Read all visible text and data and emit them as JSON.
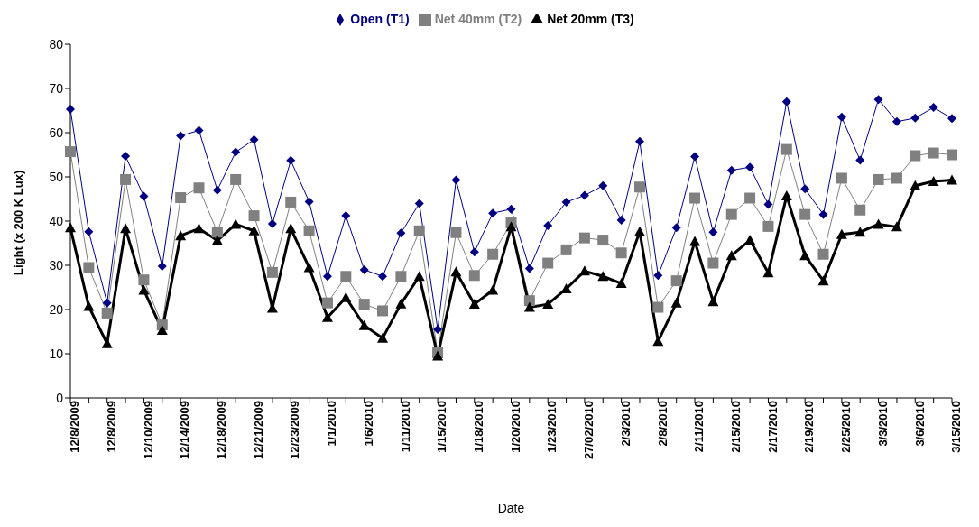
{
  "chart_data": {
    "type": "line",
    "xlabel": "Date",
    "ylabel": "Light (x 200 K Lux)",
    "categories": [
      "12/8/2009",
      null,
      "12/8/2009",
      null,
      "12/10/2009",
      null,
      "12/14/2009",
      null,
      "12/18/2009",
      null,
      "12/21/2009",
      null,
      "12/23/2009",
      null,
      "1/1/2010",
      null,
      "1/6/2010",
      null,
      "1/11/2010",
      null,
      "1/15/2010",
      null,
      "1/18/2010",
      null,
      "1/20/2010",
      null,
      "1/23/2010",
      null,
      "27/02/2010",
      null,
      "2/3/2010",
      null,
      "2/8/2010",
      null,
      "2/11/2010",
      null,
      "2/15/2010",
      null,
      "2/17/2010",
      null,
      "2/19/2010",
      null,
      "2/25/2010",
      null,
      "3/3/2010",
      null,
      "3/6/2010",
      null,
      "3/15/2010"
    ],
    "series": [
      {
        "name": "Open (T1)",
        "color": "#000080",
        "marker": "diamond",
        "values": [
          65.3,
          37.6,
          21.5,
          54.7,
          45.6,
          29.8,
          59.3,
          60.5,
          47,
          55.6,
          58.4,
          39.4,
          53.7,
          44.4,
          27.5,
          41.2,
          29,
          27.5,
          37.3,
          44,
          15.5,
          49.3,
          33,
          41.8,
          42.7,
          29.3,
          39,
          44.3,
          45.8,
          48,
          40.2,
          58,
          27.7,
          38.5,
          54.6,
          37.5,
          51.5,
          52.2,
          43.8,
          67,
          47.3,
          41.5,
          63.5,
          53.8,
          67.5,
          62.5,
          63.3,
          65.7,
          63.2
        ]
      },
      {
        "name": "Net 40mm (T2)",
        "color": "#808080",
        "marker": "square",
        "values": [
          55.7,
          29.5,
          19.2,
          49.4,
          26.7,
          16.5,
          45.3,
          47.5,
          37.5,
          49.4,
          41.2,
          28.4,
          44.3,
          37.8,
          21.5,
          27.5,
          21.2,
          19.7,
          27.5,
          37.8,
          10.2,
          37.4,
          27.7,
          32.5,
          39.6,
          22,
          30.5,
          33.5,
          36.2,
          35.7,
          32.8,
          47.7,
          20.5,
          26.5,
          45.2,
          30.5,
          41.5,
          45.2,
          38.8,
          56.2,
          41.5,
          32.5,
          49.7,
          42.5,
          49.4,
          49.7,
          54.8,
          55.4,
          55
        ]
      },
      {
        "name": "Net 20mm (T3)",
        "color": "#000000",
        "marker": "triangle",
        "values": [
          38.5,
          20.7,
          12.3,
          38.3,
          24.4,
          15.3,
          36.7,
          38.3,
          35.6,
          39.3,
          37.8,
          20.3,
          38.3,
          29.5,
          18.2,
          22.7,
          16.4,
          13.5,
          21.3,
          27.5,
          9.5,
          28.5,
          21.2,
          24.4,
          38.7,
          20.5,
          21.2,
          24.7,
          28.7,
          27.5,
          25.9,
          37.6,
          12.8,
          21.5,
          35.4,
          21.8,
          32.2,
          35.7,
          28.3,
          45.7,
          32.2,
          26.5,
          37,
          37.5,
          39.3,
          38.7,
          48,
          49,
          49.3
        ]
      }
    ],
    "ylim": [
      0,
      80
    ],
    "yticks": [
      0,
      10,
      20,
      30,
      40,
      50,
      60,
      70,
      80
    ],
    "grid": false,
    "legend": "top",
    "line_style": "solid"
  }
}
